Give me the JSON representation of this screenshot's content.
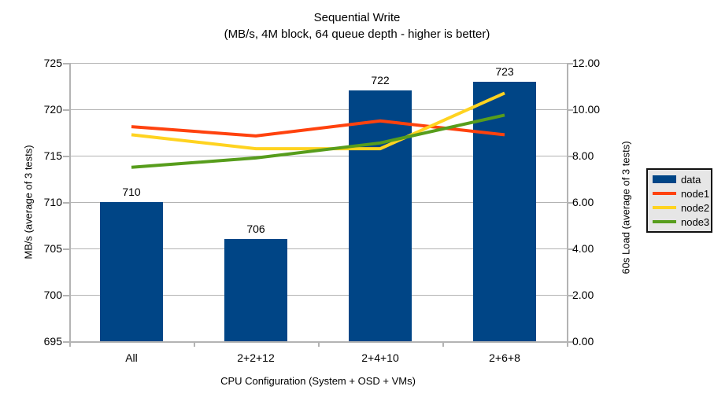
{
  "chart": {
    "title": "Sequential Write",
    "subtitle": "(MB/s, 4M block, 64 queue depth - higher is better)",
    "left_axis": {
      "title": "MB/s (average of 3 tests)"
    },
    "right_axis": {
      "title": "60s Load (average of 3 tests)"
    },
    "x_axis": {
      "title": "CPU Configuration (System + OSD + VMs)"
    }
  },
  "chart_data": {
    "type": "bar",
    "subtype": "combo bar + line, dual y-axes",
    "title": "Sequential Write",
    "subtitle": "(MB/s, 4M block, 64 queue depth - higher is better)",
    "categories": [
      "All",
      "2+2+12",
      "2+4+10",
      "2+6+8"
    ],
    "xlabel": "CPU Configuration (System + OSD + VMs)",
    "left_ylabel": "MB/s (average of 3 tests)",
    "right_ylabel": "60s Load (average of 3 tests)",
    "left_ylim": [
      695,
      725
    ],
    "left_step": 5,
    "right_ylim": [
      0,
      12
    ],
    "right_step": 2,
    "grid": "horizontal",
    "legend_position": "right",
    "bar_series": {
      "name": "data",
      "axis": "left",
      "color": "#004586",
      "values": [
        710,
        706,
        722,
        723
      ],
      "data_labels": [
        "710",
        "706",
        "722",
        "723"
      ]
    },
    "line_series": [
      {
        "name": "node1",
        "axis": "right",
        "color": "#FF420E",
        "values": [
          9.25,
          8.85,
          9.5,
          8.9
        ]
      },
      {
        "name": "node2",
        "axis": "right",
        "color": "#FFD320",
        "values": [
          8.9,
          8.3,
          8.3,
          10.7
        ]
      },
      {
        "name": "node3",
        "axis": "right",
        "color": "#579D1C",
        "values": [
          7.5,
          7.9,
          8.55,
          9.75
        ]
      }
    ],
    "colors": {
      "grid": "#b3b3b3",
      "axis": "#b3b3b3",
      "text": "#000000",
      "legend_bg": "#e6e6e6",
      "legend_border": "#111111"
    }
  }
}
